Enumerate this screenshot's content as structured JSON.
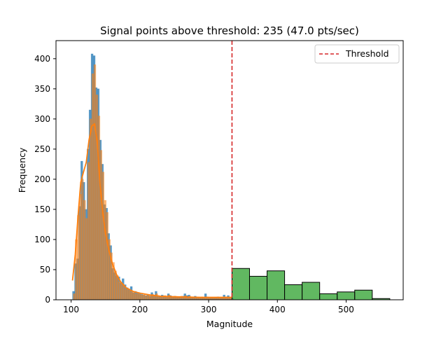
{
  "chart_data": {
    "type": "bar",
    "title": "Signal points above threshold: 235 (47.0 pts/sec)",
    "xlabel": "Magnitude",
    "ylabel": "Frequency",
    "xlim": [
      78,
      583
    ],
    "ylim": [
      0,
      430
    ],
    "xticks": [
      100,
      200,
      300,
      400,
      500
    ],
    "yticks": [
      0,
      50,
      100,
      150,
      200,
      250,
      300,
      350,
      400
    ],
    "grid": false,
    "legend": {
      "location": "top-right",
      "entries": [
        "Threshold"
      ]
    },
    "threshold": {
      "x": 334,
      "label": "Threshold",
      "color": "#d62728",
      "style": "dashed"
    },
    "colors": {
      "blue": "#1f77b4",
      "orange": "#ff7f0e",
      "green": "#2ca02c",
      "threshold": "#d62728"
    },
    "series": [
      {
        "type": "histogram",
        "color": "#1f77b4",
        "opacity": 0.75,
        "bin_width": 3,
        "bins": [
          [
            102,
            14
          ],
          [
            105,
            60
          ],
          [
            108,
            68
          ],
          [
            111,
            155
          ],
          [
            114,
            230
          ],
          [
            117,
            195
          ],
          [
            120,
            150
          ],
          [
            123,
            250
          ],
          [
            126,
            315
          ],
          [
            129,
            408
          ],
          [
            132,
            405
          ],
          [
            135,
            352
          ],
          [
            138,
            350
          ],
          [
            141,
            265
          ],
          [
            144,
            225
          ],
          [
            147,
            158
          ],
          [
            150,
            152
          ],
          [
            153,
            110
          ],
          [
            156,
            90
          ],
          [
            159,
            52
          ],
          [
            162,
            45
          ],
          [
            165,
            40
          ],
          [
            168,
            38
          ],
          [
            171,
            28
          ],
          [
            174,
            35
          ],
          [
            177,
            25
          ],
          [
            180,
            20
          ],
          [
            183,
            18
          ],
          [
            186,
            22
          ],
          [
            189,
            12
          ],
          [
            192,
            14
          ],
          [
            195,
            11
          ],
          [
            198,
            10
          ],
          [
            201,
            9
          ],
          [
            204,
            8
          ],
          [
            207,
            7
          ],
          [
            210,
            9
          ],
          [
            213,
            6
          ],
          [
            216,
            12
          ],
          [
            219,
            8
          ],
          [
            222,
            14
          ],
          [
            225,
            7
          ],
          [
            228,
            5
          ],
          [
            231,
            8
          ],
          [
            234,
            6
          ],
          [
            237,
            5
          ],
          [
            240,
            10
          ],
          [
            243,
            7
          ],
          [
            246,
            5
          ],
          [
            249,
            6
          ],
          [
            252,
            5
          ],
          [
            255,
            4
          ],
          [
            258,
            5
          ],
          [
            261,
            6
          ],
          [
            264,
            10
          ],
          [
            267,
            7
          ],
          [
            270,
            8
          ],
          [
            273,
            4
          ],
          [
            276,
            5
          ],
          [
            279,
            6
          ],
          [
            282,
            5
          ],
          [
            285,
            4
          ],
          [
            288,
            4
          ],
          [
            291,
            3
          ],
          [
            294,
            10
          ],
          [
            297,
            5
          ],
          [
            300,
            4
          ],
          [
            303,
            3
          ],
          [
            306,
            4
          ],
          [
            309,
            3
          ],
          [
            312,
            5
          ],
          [
            315,
            4
          ],
          [
            318,
            3
          ],
          [
            321,
            8
          ],
          [
            324,
            5
          ],
          [
            327,
            7
          ],
          [
            330,
            4
          ],
          [
            333,
            3
          ]
        ]
      },
      {
        "type": "histogram",
        "color": "#ff7f0e",
        "opacity": 0.55,
        "bin_width": 3,
        "bins": [
          [
            103,
            10
          ],
          [
            106,
            100
          ],
          [
            109,
            140
          ],
          [
            112,
            175
          ],
          [
            115,
            200
          ],
          [
            118,
            165
          ],
          [
            121,
            135
          ],
          [
            124,
            228
          ],
          [
            127,
            300
          ],
          [
            130,
            375
          ],
          [
            133,
            390
          ],
          [
            136,
            340
          ],
          [
            139,
            305
          ],
          [
            142,
            248
          ],
          [
            145,
            212
          ],
          [
            148,
            165
          ],
          [
            151,
            145
          ],
          [
            154,
            100
          ],
          [
            157,
            78
          ],
          [
            160,
            62
          ],
          [
            163,
            48
          ],
          [
            166,
            40
          ],
          [
            169,
            30
          ],
          [
            172,
            28
          ],
          [
            175,
            25
          ],
          [
            178,
            18
          ],
          [
            181,
            17
          ],
          [
            184,
            15
          ],
          [
            187,
            13
          ],
          [
            190,
            12
          ],
          [
            193,
            10
          ],
          [
            196,
            10
          ],
          [
            199,
            9
          ],
          [
            202,
            8
          ],
          [
            205,
            9
          ],
          [
            208,
            7
          ],
          [
            211,
            8
          ],
          [
            214,
            7
          ],
          [
            217,
            9
          ],
          [
            220,
            8
          ],
          [
            223,
            10
          ],
          [
            226,
            6
          ],
          [
            229,
            6
          ],
          [
            232,
            6
          ],
          [
            235,
            7
          ],
          [
            238,
            6
          ],
          [
            241,
            8
          ],
          [
            244,
            6
          ],
          [
            247,
            5
          ],
          [
            250,
            6
          ],
          [
            253,
            5
          ],
          [
            256,
            5
          ],
          [
            259,
            6
          ],
          [
            262,
            5
          ],
          [
            265,
            7
          ],
          [
            268,
            5
          ],
          [
            271,
            6
          ],
          [
            274,
            5
          ],
          [
            277,
            5
          ],
          [
            280,
            5
          ],
          [
            283,
            4
          ],
          [
            286,
            4
          ],
          [
            289,
            5
          ],
          [
            292,
            4
          ],
          [
            295,
            5
          ],
          [
            298,
            4
          ],
          [
            301,
            4
          ],
          [
            304,
            4
          ],
          [
            307,
            4
          ],
          [
            310,
            4
          ],
          [
            313,
            4
          ],
          [
            316,
            4
          ],
          [
            319,
            4
          ],
          [
            322,
            5
          ],
          [
            325,
            4
          ],
          [
            328,
            4
          ],
          [
            331,
            4
          ]
        ]
      },
      {
        "type": "line",
        "color": "#ff7f0e",
        "x": [
          102,
          106,
          110,
          114,
          118,
          122,
          126,
          130,
          134,
          138,
          142,
          146,
          150,
          155,
          160,
          166,
          172,
          180,
          190,
          200,
          215,
          230,
          250,
          270,
          290,
          310,
          334
        ],
        "y": [
          32,
          75,
          138,
          195,
          212,
          228,
          265,
          288,
          292,
          262,
          192,
          145,
          110,
          82,
          60,
          42,
          30,
          20,
          14,
          11,
          8,
          6,
          5,
          4.5,
          4,
          4,
          4
        ]
      },
      {
        "type": "histogram",
        "color": "#2ca02c",
        "opacity": 0.75,
        "bin_width": 25.5,
        "edgecolor": "#000000",
        "bins": [
          [
            334,
            52
          ],
          [
            359.5,
            39
          ],
          [
            385,
            48
          ],
          [
            410.5,
            25
          ],
          [
            436,
            29
          ],
          [
            461.5,
            10
          ],
          [
            487,
            13
          ],
          [
            512.5,
            16
          ],
          [
            538,
            2
          ]
        ]
      }
    ]
  }
}
